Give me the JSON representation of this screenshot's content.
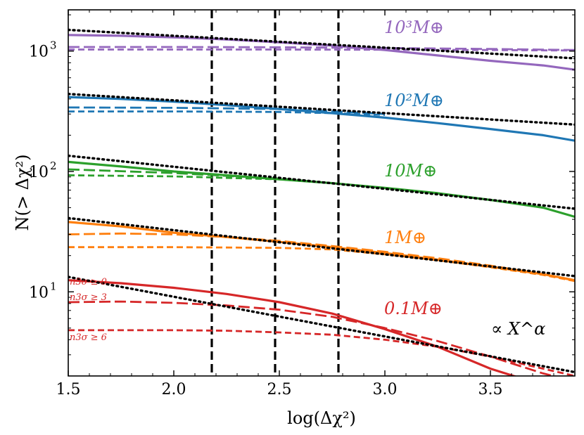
{
  "chart_data": {
    "type": "line",
    "title": "",
    "xlabel": "log(Δχ²)",
    "ylabel": "N(> Δχ²)",
    "xlim": [
      1.5,
      3.9
    ],
    "ylim": [
      2.0,
      2200
    ],
    "yscale": "log",
    "x_ticks": [
      {
        "value": 1.5,
        "label": "1.5"
      },
      {
        "value": 2.0,
        "label": "2.0"
      },
      {
        "value": 2.5,
        "label": "2.5"
      },
      {
        "value": 3.0,
        "label": "3.0"
      },
      {
        "value": 3.5,
        "label": "3.5"
      }
    ],
    "y_ticks": [
      {
        "value": 10,
        "base": "10",
        "exp": "1"
      },
      {
        "value": 100,
        "base": "10",
        "exp": "2"
      },
      {
        "value": 1000,
        "base": "10",
        "exp": "3"
      }
    ],
    "vertical_lines": [
      2.18,
      2.48,
      2.78
    ],
    "power_law_label": "∝ Χ^α",
    "n_labels": [
      "n3σ ≥ 0",
      "n3σ ≥ 3",
      "n3σ ≥ 6"
    ],
    "groups": [
      {
        "label": "10³M⊕",
        "color": "#9467bd",
        "solid": {
          "x": [
            1.5,
            1.75,
            2.0,
            2.25,
            2.5,
            2.75,
            3.0,
            3.25,
            3.5,
            3.75,
            3.9
          ],
          "y": [
            1360,
            1340,
            1300,
            1250,
            1180,
            1110,
            1020,
            920,
            830,
            760,
            700
          ]
        },
        "dashed": {
          "x": [
            1.5,
            2.0,
            2.5,
            3.0,
            3.5,
            3.9
          ],
          "y": [
            1080,
            1080,
            1075,
            1060,
            1040,
            1020
          ]
        },
        "dotted": {
          "x": [
            1.5,
            2.0,
            2.5,
            3.0,
            3.5,
            3.9
          ],
          "y": [
            1030,
            1030,
            1030,
            1025,
            1020,
            1010
          ]
        },
        "power": {
          "x": [
            1.5,
            3.9
          ],
          "y": [
            1500,
            870
          ]
        }
      },
      {
        "label": "10²M⊕",
        "color": "#1f77b4",
        "solid": {
          "x": [
            1.5,
            1.75,
            2.0,
            2.25,
            2.5,
            2.75,
            3.0,
            3.25,
            3.5,
            3.75,
            3.9
          ],
          "y": [
            415,
            400,
            380,
            355,
            330,
            305,
            280,
            252,
            225,
            200,
            180
          ]
        },
        "dashed": {
          "x": [
            1.5,
            2.0,
            2.5,
            2.75,
            3.0
          ],
          "y": [
            340,
            338,
            330,
            315,
            300
          ]
        },
        "dotted": {
          "x": [
            1.5,
            2.0,
            2.5,
            2.75,
            3.0
          ],
          "y": [
            315,
            315,
            312,
            305,
            295
          ]
        },
        "power": {
          "x": [
            1.5,
            3.9
          ],
          "y": [
            440,
            245
          ]
        }
      },
      {
        "label": "10M⊕",
        "color": "#2ca02c",
        "solid": {
          "x": [
            1.5,
            1.75,
            2.0,
            2.25,
            2.5,
            2.75,
            3.0,
            3.25,
            3.5,
            3.75,
            3.9
          ],
          "y": [
            120,
            110,
            100,
            93,
            86,
            80,
            73,
            66,
            58,
            50,
            42
          ]
        },
        "dashed": {
          "x": [
            1.5,
            2.0,
            2.5,
            2.75
          ],
          "y": [
            104,
            97,
            87,
            80
          ]
        },
        "dotted": {
          "x": [
            1.5,
            2.0,
            2.5,
            2.75
          ],
          "y": [
            93,
            91,
            86,
            80
          ]
        },
        "power": {
          "x": [
            1.5,
            3.9
          ],
          "y": [
            135,
            49
          ]
        }
      },
      {
        "label": "1M⊕",
        "color": "#ff7f0e",
        "solid": {
          "x": [
            1.5,
            1.75,
            2.0,
            2.25,
            2.5,
            2.75,
            3.0,
            3.25,
            3.5,
            3.75,
            3.9
          ],
          "y": [
            38,
            35,
            31,
            28.5,
            26,
            23.5,
            21,
            18.5,
            16.2,
            14,
            12.5
          ]
        },
        "dashed": {
          "x": [
            1.5,
            1.75,
            2.0,
            2.25,
            2.5,
            2.75,
            3.0,
            3.25,
            3.5,
            3.75,
            3.9
          ],
          "y": [
            30,
            30.5,
            30,
            28.5,
            26.5,
            24,
            21.5,
            19,
            16.5,
            14,
            12.4
          ]
        },
        "dotted": {
          "x": [
            1.5,
            2.0,
            2.5,
            2.75,
            3.0,
            3.25,
            3.5,
            3.75,
            3.9
          ],
          "y": [
            23.5,
            23.5,
            23.2,
            22.5,
            20.5,
            18.3,
            16,
            13.8,
            12.3
          ]
        },
        "power": {
          "x": [
            1.5,
            3.9
          ],
          "y": [
            41,
            13.5
          ]
        }
      },
      {
        "label": "0.1M⊕",
        "color": "#d62728",
        "solid": {
          "x": [
            1.5,
            1.75,
            2.0,
            2.25,
            2.5,
            2.75,
            3.0,
            3.25,
            3.5,
            3.65
          ],
          "y": [
            12.5,
            11.8,
            10.8,
            9.6,
            8.2,
            6.6,
            4.9,
            3.5,
            2.3,
            1.9
          ]
        },
        "dashed": {
          "x": [
            1.5,
            1.75,
            2.0,
            2.25,
            2.5,
            2.75,
            3.0,
            3.25,
            3.5,
            3.75,
            3.85
          ],
          "y": [
            8.2,
            8.3,
            8.1,
            7.7,
            7.1,
            6.2,
            5.0,
            3.9,
            2.9,
            2.1,
            1.9
          ]
        },
        "dotted": {
          "x": [
            1.5,
            1.75,
            2.0,
            2.25,
            2.5,
            2.75,
            3.0,
            3.25,
            3.5,
            3.75,
            3.9
          ],
          "y": [
            4.8,
            4.8,
            4.8,
            4.75,
            4.6,
            4.4,
            4.0,
            3.5,
            2.9,
            2.3,
            2.0
          ]
        },
        "power": {
          "x": [
            1.5,
            3.9
          ],
          "y": [
            13.3,
            2.15
          ]
        }
      }
    ]
  }
}
